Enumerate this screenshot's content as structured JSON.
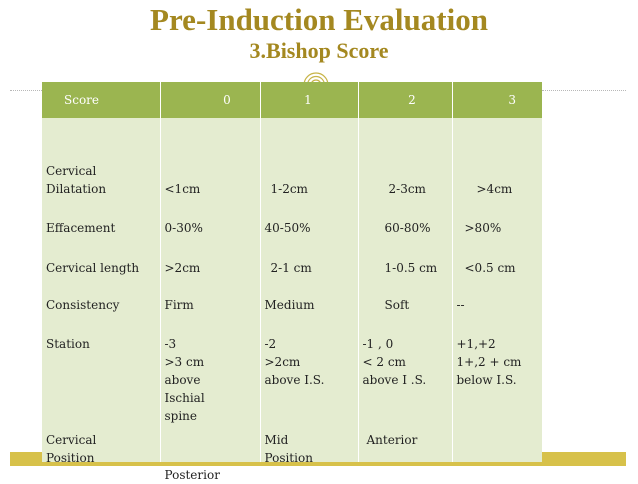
{
  "slide": {
    "title": "Pre-Induction Evaluation",
    "subtitle": "3.Bishop Score"
  },
  "table": {
    "headers": [
      "Score",
      "0",
      "1",
      "2",
      "3"
    ],
    "rows": [
      {
        "label": "Cervical Dilatation",
        "label_lines": [
          "Cervical",
          "Dilatation"
        ],
        "values": [
          "<1cm",
          "1-2cm",
          "2-3cm",
          ">4cm"
        ]
      },
      {
        "label": "Effacement",
        "label_lines": [
          "Effacement"
        ],
        "values": [
          "0-30%",
          "40-50%",
          "60-80%",
          ">80%"
        ]
      },
      {
        "label": "Cervical length",
        "label_lines": [
          "Cervical length"
        ],
        "values": [
          ">2cm",
          "2-1 cm",
          "1-0.5 cm",
          "<0.5 cm"
        ]
      },
      {
        "label": "Consistency",
        "label_lines": [
          "Consistency"
        ],
        "values": [
          "Firm",
          "Medium",
          "Soft",
          "--"
        ]
      },
      {
        "label": "Station",
        "label_lines": [
          "Station"
        ],
        "values_lines": [
          [
            "-3",
            ">3 cm",
            "above",
            "Ischial",
            "spine"
          ],
          [
            "-2",
            ">2cm",
            "above I.S."
          ],
          [
            "-1 , 0",
            "< 2 cm",
            "above  I .S."
          ],
          [
            "+1,+2",
            "1+,2 + cm",
            "below I.S."
          ]
        ]
      },
      {
        "label": "Cervical Position",
        "label_lines": [
          "Cervical",
          "Position"
        ],
        "values": [
          "Posterior",
          "Mid Position",
          "Anterior",
          ""
        ],
        "values_lines": [
          [
            "Posterior"
          ],
          [
            "Mid",
            "Position"
          ],
          [
            "Anterior"
          ],
          []
        ]
      }
    ]
  }
}
